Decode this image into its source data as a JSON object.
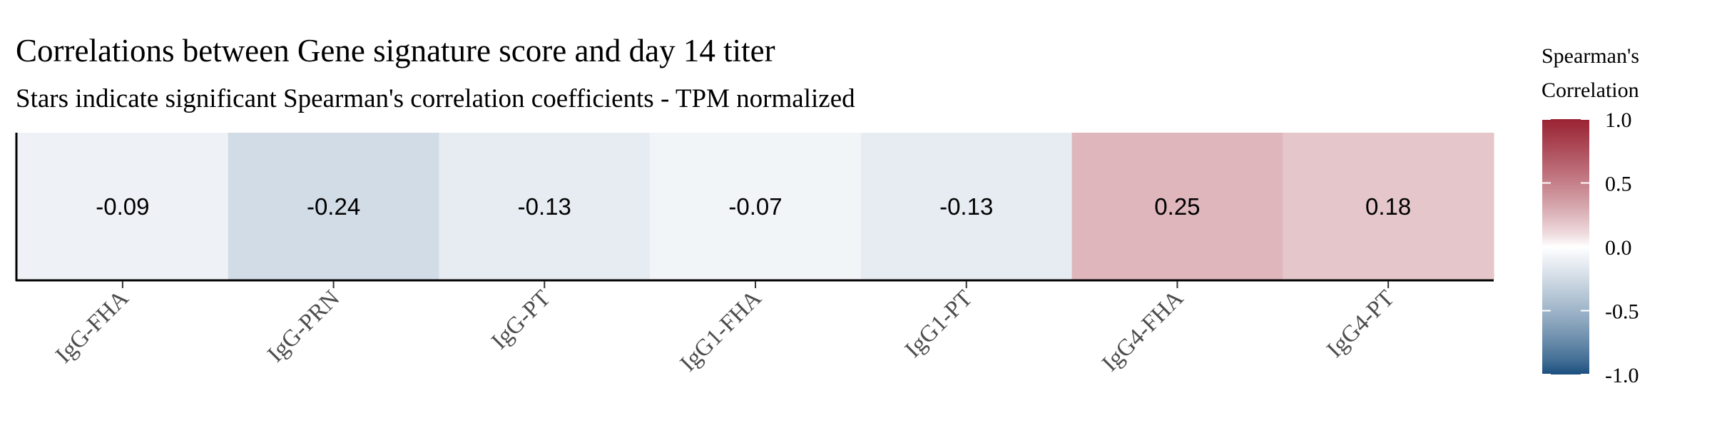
{
  "chart_data": {
    "type": "heatmap",
    "title": "Correlations between Gene signature score and day 14 titer",
    "subtitle": "Stars indicate significant Spearman's correlation coefficients - TPM normalized",
    "categories": [
      "IgG-FHA",
      "IgG-PRN",
      "IgG-PT",
      "IgG1-FHA",
      "IgG1-PT",
      "IgG4-FHA",
      "IgG4-PT"
    ],
    "values": [
      -0.09,
      -0.24,
      -0.13,
      -0.07,
      -0.13,
      0.25,
      0.18
    ],
    "value_labels": [
      "-0.09",
      "-0.24",
      "-0.13",
      "-0.07",
      "-0.13",
      "0.25",
      "0.18"
    ],
    "xlabel": "",
    "ylabel": "",
    "legend": {
      "title_line1": "Spearman's",
      "title_line2": "Correlation",
      "position": "right",
      "range": [
        -1.0,
        1.0
      ],
      "ticks": [
        1.0,
        0.5,
        0.0,
        -0.5,
        -1.0
      ],
      "tick_labels": [
        "1.0",
        "0.5",
        "0.0",
        "-0.5",
        "-1.0"
      ]
    },
    "colors": {
      "low": "#1b4f7f",
      "mid": "#ffffff",
      "high": "#9a2233"
    }
  }
}
